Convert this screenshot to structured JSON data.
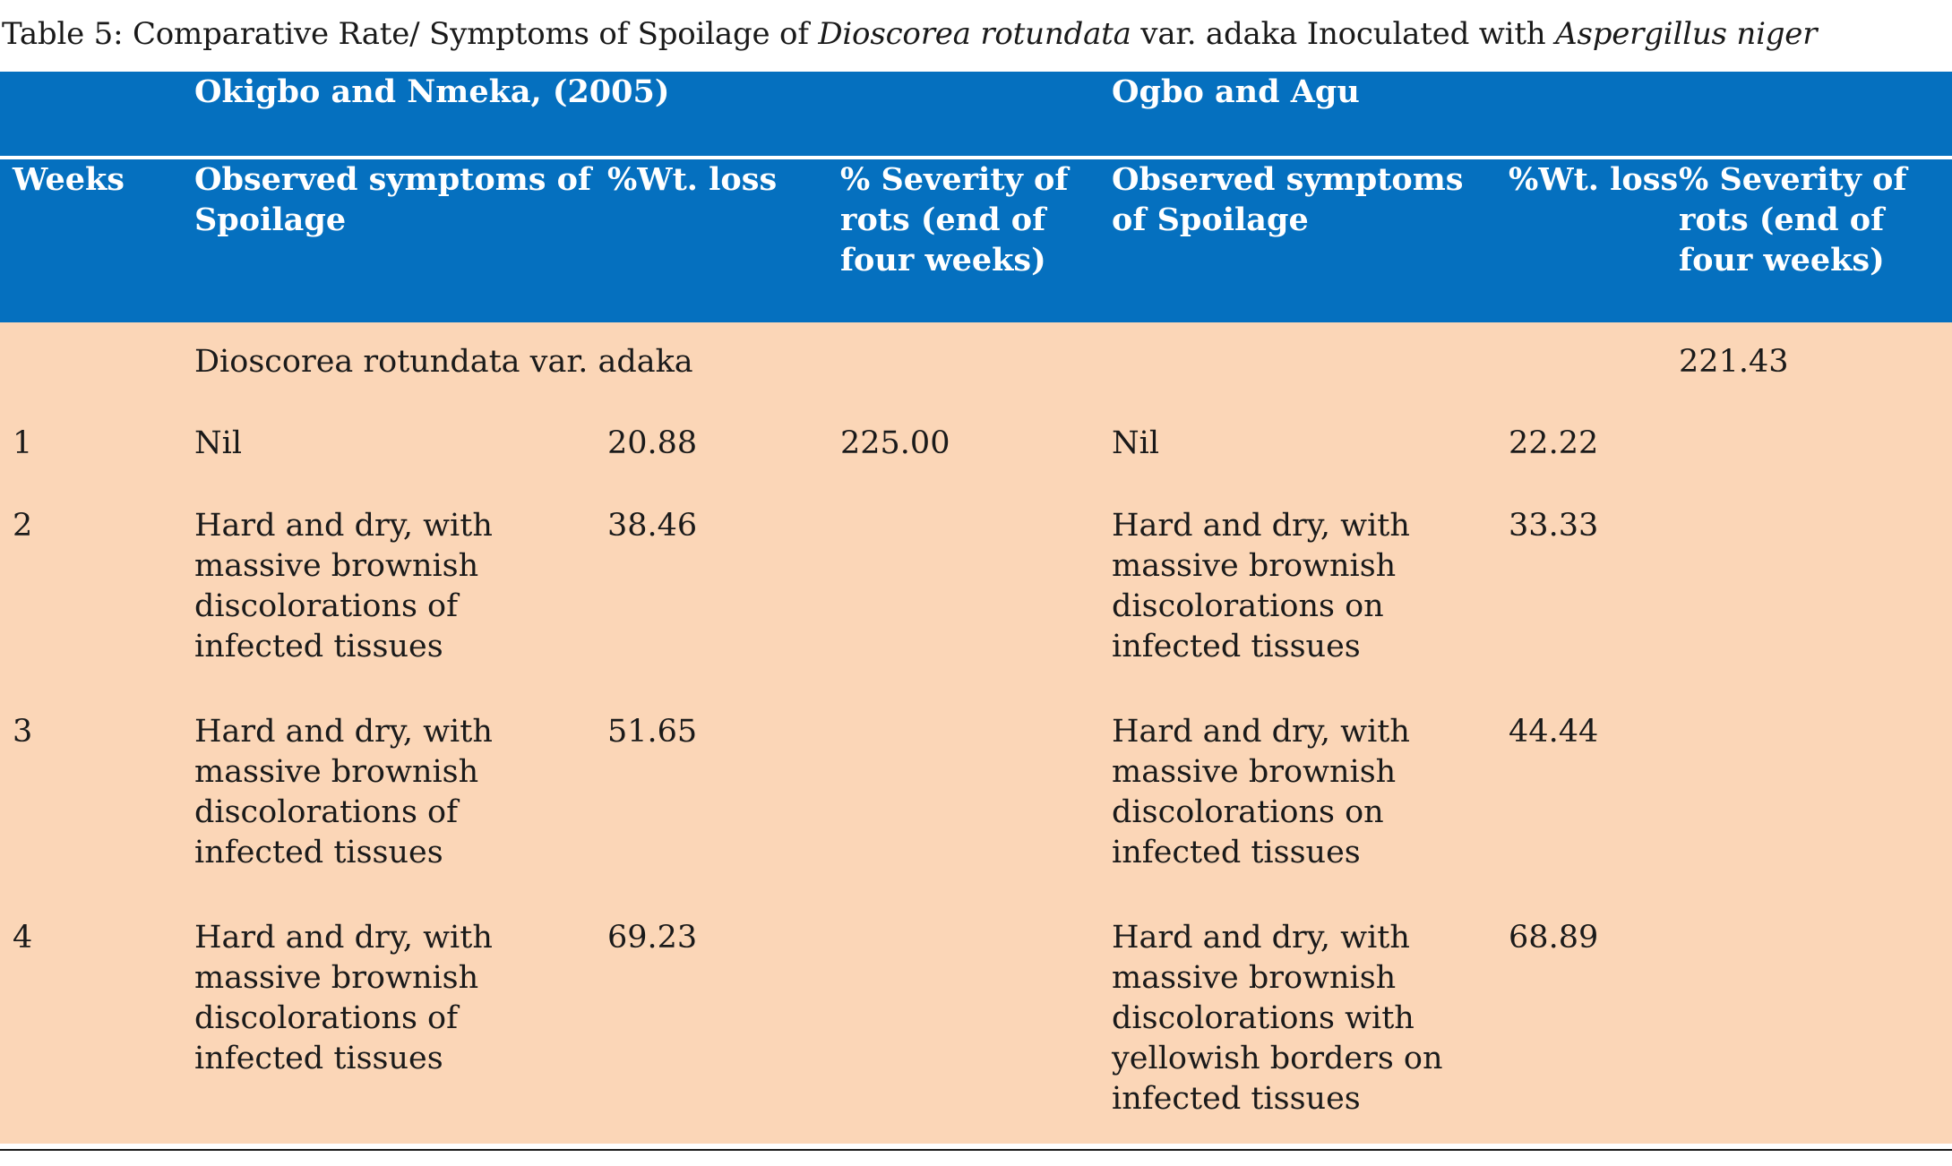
{
  "caption": {
    "prefix": "Table 5: Comparative Rate/ Symptoms of Spoilage of ",
    "species": "Dioscorea rotundata",
    "middle": " var. adaka Inoculated with ",
    "organism": "Aspergillus niger"
  },
  "table": {
    "group_headers": {
      "group1": "Okigbo and Nmeka, (2005)",
      "group2": "Ogbo and Agu"
    },
    "column_headers": {
      "weeks": "Weeks",
      "symptoms1": "Observed symptoms of Spoilage",
      "wtloss1": "%Wt. loss",
      "severity1": "% Severity of rots (end of four weeks)",
      "symptoms2": "Observed symptoms of Spoilage",
      "wtloss2": "%Wt. loss",
      "severity2": "% Severity of rots (end of four weeks)"
    },
    "rows": [
      {
        "week": "",
        "symptoms1": "Dioscorea rotundata var. adaka",
        "wtloss1": "",
        "severity1": "",
        "symptoms2": "",
        "wtloss2": "",
        "severity2": "221.43"
      },
      {
        "week": "1",
        "symptoms1": "Nil",
        "wtloss1": "20.88",
        "severity1": "225.00",
        "symptoms2": "Nil",
        "wtloss2": "22.22",
        "severity2": ""
      },
      {
        "week": "2",
        "symptoms1": "Hard and dry, with massive brownish discolorations of infected tissues",
        "wtloss1": "38.46",
        "severity1": "",
        "symptoms2": "Hard and dry, with massive brownish discolorations on infected tissues",
        "wtloss2": "33.33",
        "severity2": ""
      },
      {
        "week": "3",
        "symptoms1": "Hard and dry, with massive brownish discolorations of infected tissues",
        "wtloss1": "51.65",
        "severity1": "",
        "symptoms2": "Hard and dry, with massive brownish discolorations on infected tissues",
        "wtloss2": "44.44",
        "severity2": ""
      },
      {
        "week": "4",
        "symptoms1": "Hard and dry, with massive brownish discolorations of infected tissues",
        "wtloss1": "69.23",
        "severity1": "",
        "symptoms2": "Hard and dry, with massive brownish discolorations with yellowish borders on infected tissues",
        "wtloss2": "68.89",
        "severity2": ""
      }
    ]
  },
  "colors": {
    "header_bg": "#0570bf",
    "body_bg": "#fbd6b7",
    "header_text": "#ffffff"
  }
}
